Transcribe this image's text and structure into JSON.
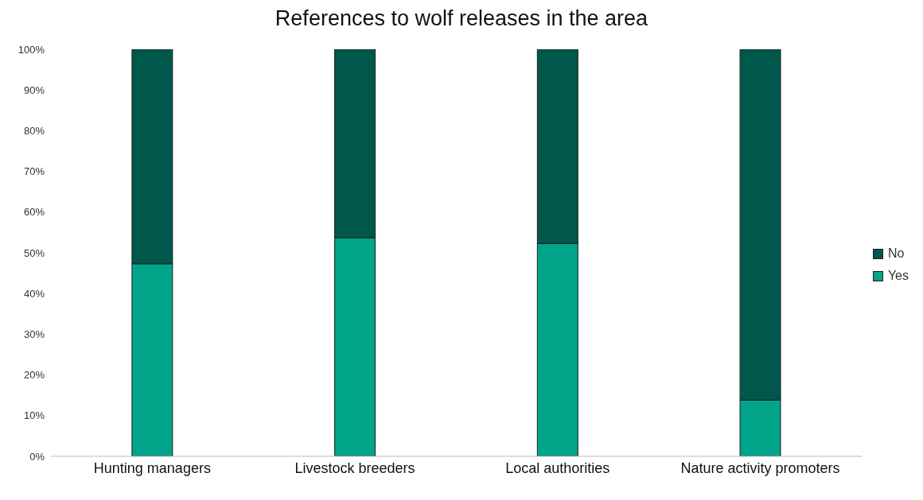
{
  "chart_data": {
    "type": "bar",
    "title": "References to wolf releases in the area",
    "categories": [
      "Hunting managers",
      "Livestock breeders",
      "Local authorities",
      "Nature activity promoters"
    ],
    "stacked": true,
    "series": [
      {
        "name": "Yes",
        "color": "#00a58a",
        "values": [
          47.3,
          53.7,
          52.3,
          13.8
        ]
      },
      {
        "name": "No",
        "color": "#00584c",
        "values": [
          52.7,
          46.3,
          47.7,
          86.2
        ]
      }
    ],
    "ylim": [
      0,
      100
    ],
    "yticks": [
      {
        "value": 0,
        "label": "0%"
      },
      {
        "value": 10,
        "label": "10%"
      },
      {
        "value": 20,
        "label": "20%"
      },
      {
        "value": 30,
        "label": "30%"
      },
      {
        "value": 40,
        "label": "40%"
      },
      {
        "value": 50,
        "label": "50%"
      },
      {
        "value": 60,
        "label": "60%"
      },
      {
        "value": 70,
        "label": "70%"
      },
      {
        "value": 80,
        "label": "80%"
      },
      {
        "value": 90,
        "label": "90%"
      },
      {
        "value": 100,
        "label": "100%"
      }
    ],
    "grid": false,
    "legend": "right"
  }
}
